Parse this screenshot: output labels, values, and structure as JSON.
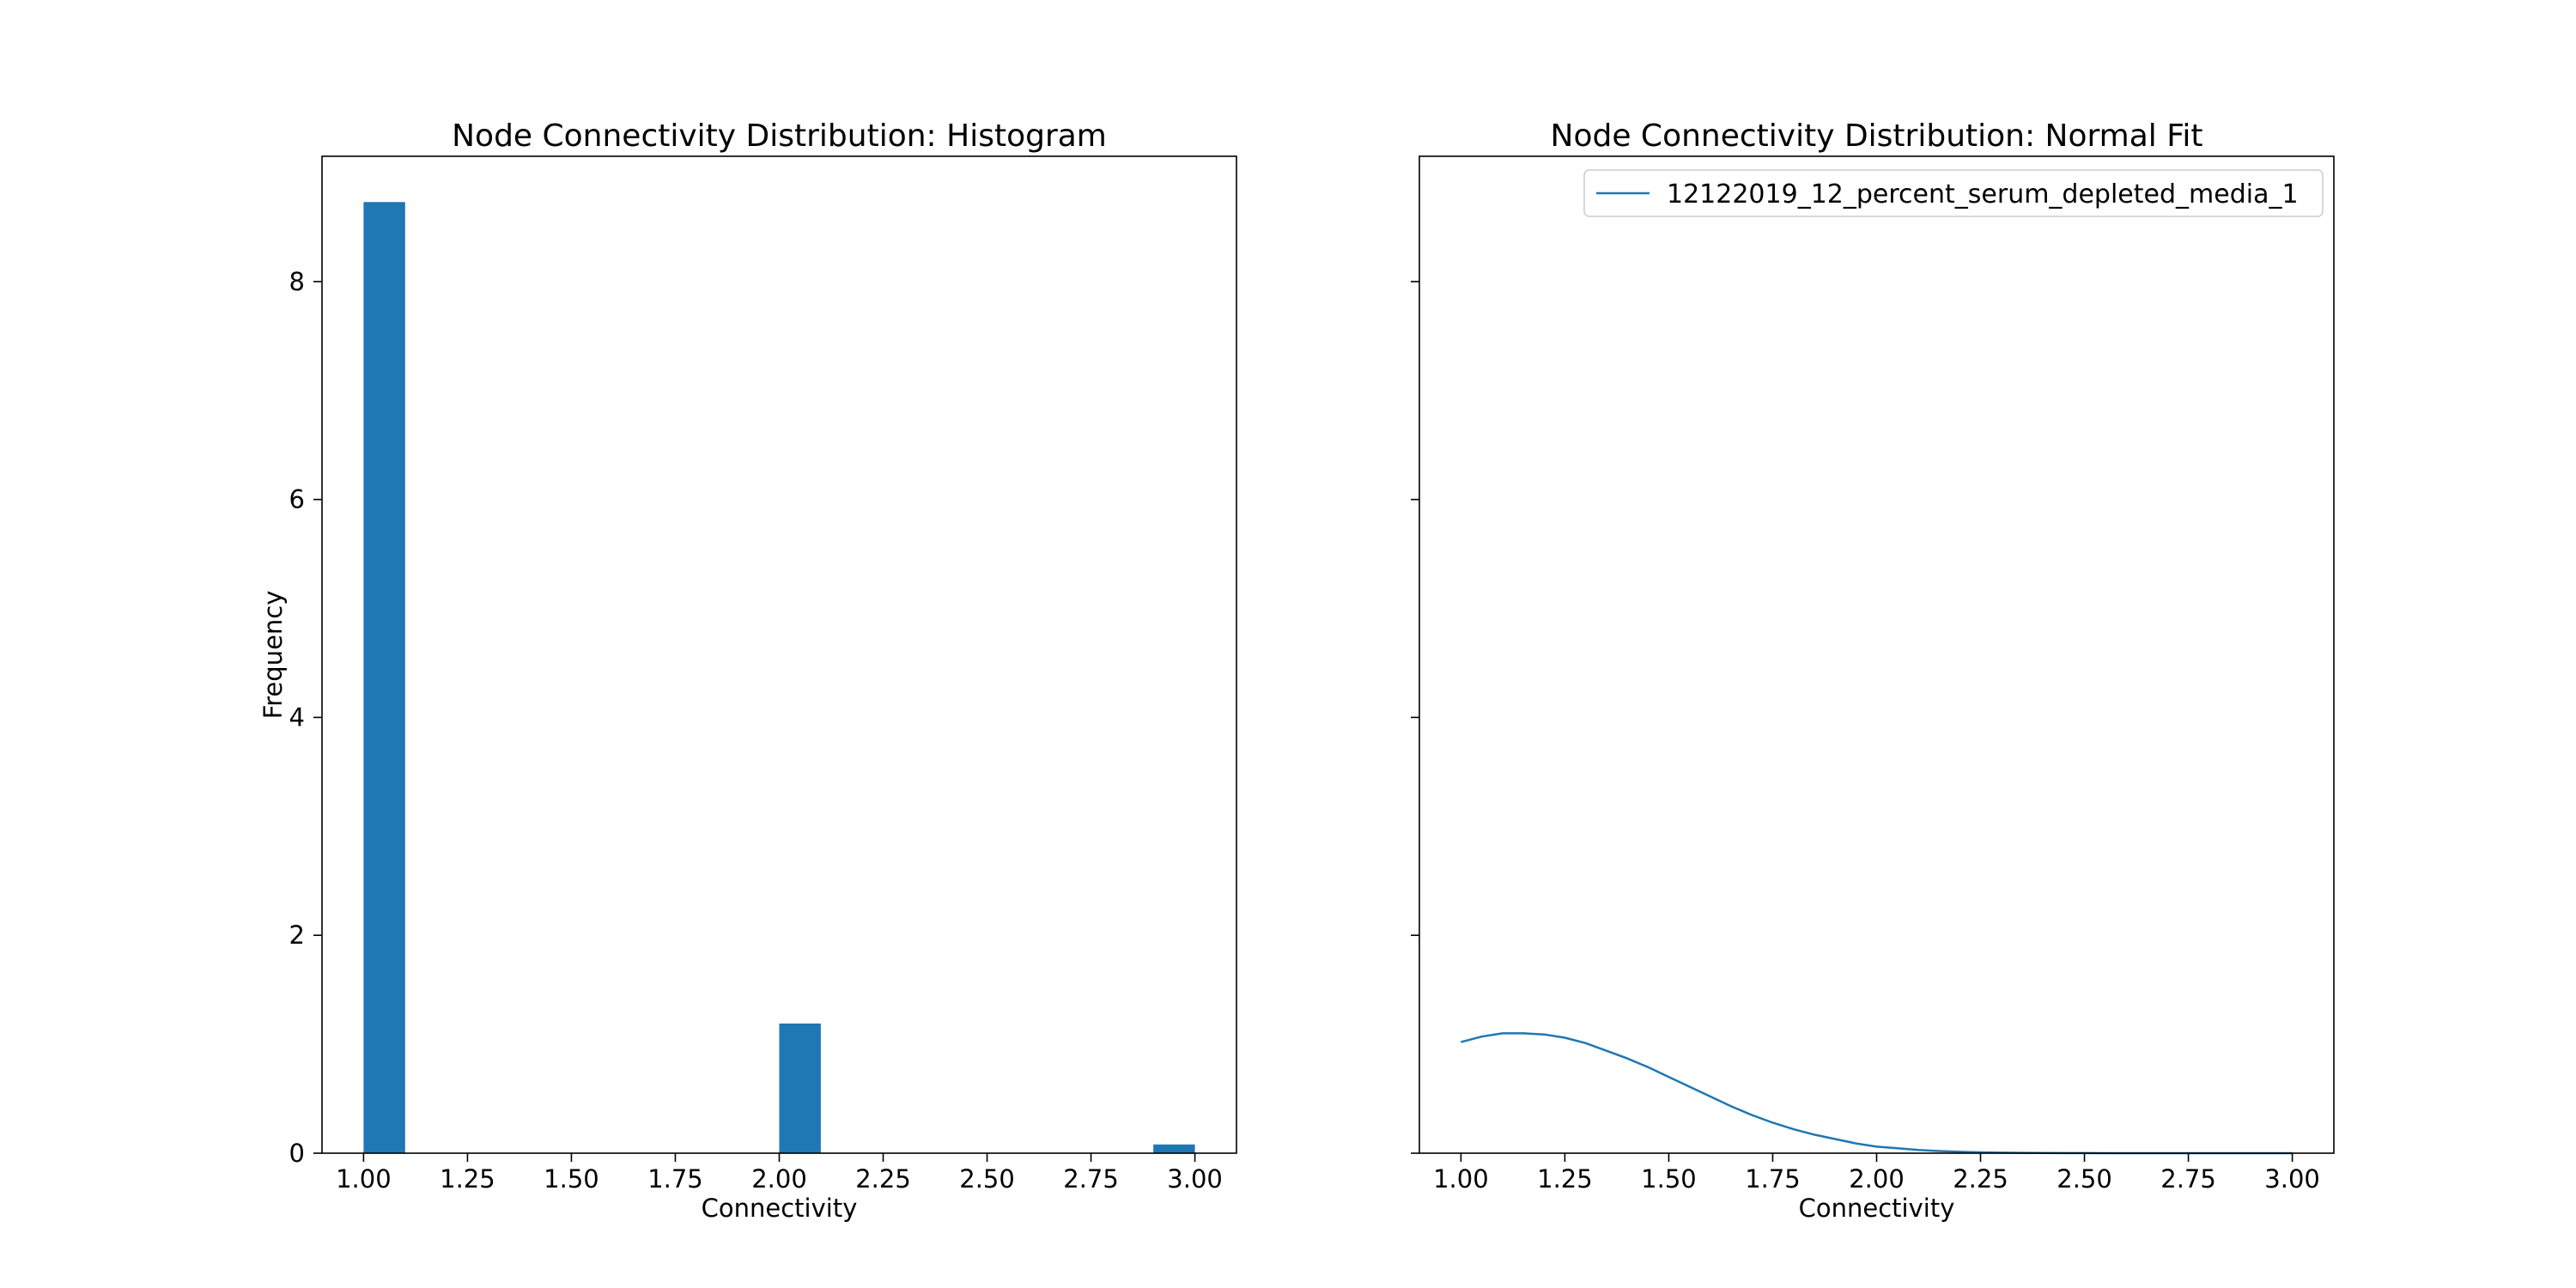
{
  "chart_data": [
    {
      "type": "bar",
      "title": "Node Connectivity Distribution: Histogram",
      "xlabel": "Connectivity",
      "ylabel": "Frequency",
      "xlim": [
        0.9,
        3.1
      ],
      "ylim": [
        0,
        9.15
      ],
      "xticks": [
        1.0,
        1.25,
        1.5,
        1.75,
        2.0,
        2.25,
        2.5,
        2.75,
        3.0
      ],
      "xtick_labels": [
        "1.00",
        "1.25",
        "1.50",
        "1.75",
        "2.00",
        "2.25",
        "2.50",
        "2.75",
        "3.00"
      ],
      "yticks": [
        0,
        2,
        4,
        6,
        8
      ],
      "ytick_labels": [
        "0",
        "2",
        "4",
        "6",
        "8"
      ],
      "bin_width": 0.1,
      "bins": [
        {
          "x0": 1.0,
          "value": 8.73
        },
        {
          "x0": 2.0,
          "value": 1.19
        },
        {
          "x0": 2.9,
          "value": 0.08
        }
      ],
      "color": "#1f77b4",
      "grid": false
    },
    {
      "type": "line",
      "title": "Node Connectivity Distribution: Normal Fit",
      "xlabel": "Connectivity",
      "ylabel": "",
      "xlim": [
        0.9,
        3.1
      ],
      "ylim": [
        0,
        9.15
      ],
      "xticks": [
        1.0,
        1.25,
        1.5,
        1.75,
        2.0,
        2.25,
        2.5,
        2.75,
        3.0
      ],
      "xtick_labels": [
        "1.00",
        "1.25",
        "1.50",
        "1.75",
        "2.00",
        "2.25",
        "2.50",
        "2.75",
        "3.00"
      ],
      "yticks": [
        0,
        2,
        4,
        6,
        8
      ],
      "series": [
        {
          "name": "12122019_12_percent_serum_depleted_media_1",
          "color": "#1f77b4",
          "x": [
            1.0,
            1.05,
            1.1,
            1.15,
            1.2,
            1.25,
            1.3,
            1.35,
            1.4,
            1.45,
            1.5,
            1.55,
            1.6,
            1.65,
            1.7,
            1.75,
            1.8,
            1.85,
            1.9,
            1.95,
            2.0,
            2.05,
            2.1,
            2.15,
            2.2,
            2.25,
            2.3,
            2.35,
            2.4,
            2.45,
            2.5,
            2.55,
            2.6,
            2.65,
            2.7,
            2.75,
            2.8,
            2.85,
            2.9,
            2.95,
            3.0
          ],
          "y": [
            1.02,
            1.07,
            1.1,
            1.1,
            1.09,
            1.06,
            1.01,
            0.94,
            0.87,
            0.79,
            0.7,
            0.61,
            0.52,
            0.43,
            0.35,
            0.28,
            0.22,
            0.17,
            0.13,
            0.09,
            0.06,
            0.045,
            0.03,
            0.02,
            0.013,
            0.008,
            0.005,
            0.003,
            0.002,
            0.001,
            0.0005,
            0.0003,
            0.0002,
            0.0001,
            0.0,
            0.0,
            0.0,
            0.0,
            0.0,
            0.0,
            0.0
          ]
        }
      ],
      "legend": "upper-right",
      "grid": false
    }
  ]
}
